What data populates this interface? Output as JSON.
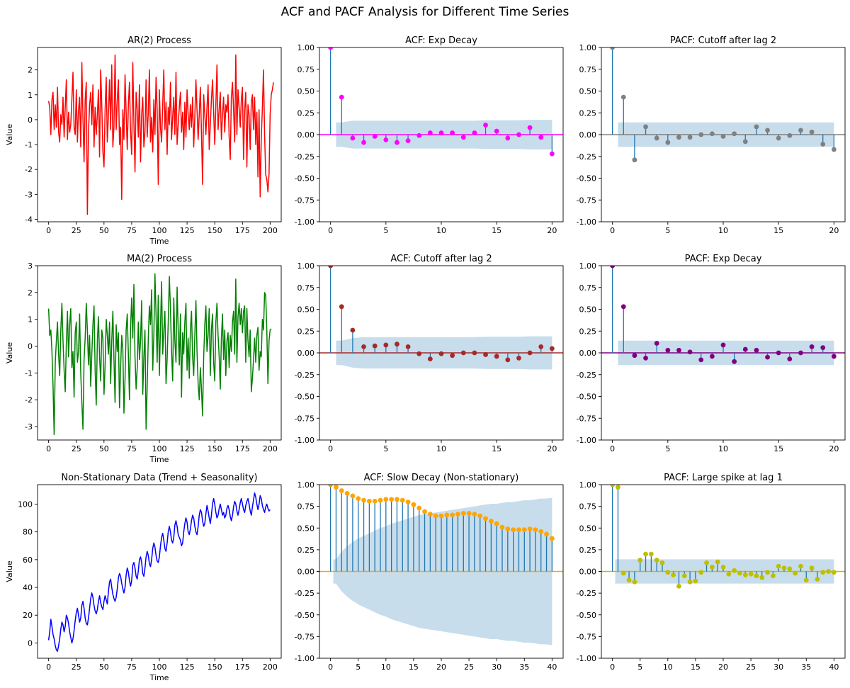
{
  "figure": {
    "title": "ACF and PACF Analysis for Different Time Series"
  },
  "chart_data": [
    {
      "type": "line",
      "title": "AR(2) Process",
      "xlabel": "Time",
      "ylabel": "Value",
      "color": "#ff0000",
      "xlim": [
        -10,
        210
      ],
      "ylim": [
        -4.1,
        2.9
      ],
      "xticks": [
        0,
        25,
        50,
        75,
        100,
        125,
        150,
        175,
        200
      ],
      "yticks": [
        -4,
        -3,
        -2,
        -1,
        0,
        1,
        2
      ],
      "x_start": 0,
      "values": [
        0.75,
        0.5,
        -0.6,
        0.8,
        1.1,
        -0.4,
        0.6,
        -0.3,
        1.3,
        -0.5,
        -0.9,
        0.2,
        -0.2,
        0.9,
        -0.7,
        0.5,
        1.6,
        -0.8,
        0.3,
        -0.5,
        -0.2,
        0.8,
        1.9,
        -0.3,
        -0.6,
        1.2,
        -0.9,
        0.4,
        0.9,
        -1.1,
        2.3,
        0.1,
        -1.7,
        0.8,
        1.5,
        -3.8,
        -0.5,
        0.6,
        1.1,
        -0.2,
        1.4,
        -1.1,
        0.5,
        -0.6,
        0.2,
        1.2,
        -1.5,
        2.0,
        0.6,
        -1.3,
        -1.9,
        0.4,
        1.7,
        -0.9,
        0.2,
        1.6,
        -0.4,
        2.2,
        -1.1,
        -0.3,
        2.6,
        -0.4,
        0.8,
        1.6,
        -1.0,
        -0.3,
        -3.2,
        0.4,
        -0.8,
        1.8,
        0.3,
        -1.2,
        0.6,
        1.5,
        -0.5,
        -1.4,
        2.3,
        -0.1,
        -2.1,
        1.1,
        0.4,
        -0.7,
        1.4,
        -1.7,
        0.2,
        0.9,
        -1.1,
        -0.5,
        1.6,
        -0.7,
        0.3,
        2.0,
        -0.9,
        0.1,
        -1.3,
        0.8,
        -0.6,
        1.7,
        0.4,
        -2.6,
        1.2,
        -0.3,
        -0.9,
        0.6,
        2.0,
        -0.4,
        0.7,
        -1.4,
        0.5,
        -0.2,
        1.5,
        -0.8,
        0.1,
        0.9,
        -0.6,
        1.9,
        -1.0,
        -0.2,
        0.5,
        1.1,
        -0.5,
        0.3,
        -1.2,
        0.7,
        -0.7,
        1.2,
        0.2,
        -0.4,
        0.6,
        -0.3,
        0.9,
        -1.1,
        0.1,
        1.6,
        0.4,
        -0.8,
        0.2,
        1.3,
        -0.5,
        -2.6,
        1.0,
        0.2,
        -0.6,
        0.5,
        1.4,
        -1.2,
        -0.2,
        0.8,
        1.6,
        0.3,
        -1.0,
        0.6,
        2.2,
        -0.4,
        0.4,
        1.1,
        -0.8,
        0.2,
        0.9,
        -0.5,
        0.6,
        0.3,
        1.0,
        -0.7,
        -1.6,
        0.9,
        1.5,
        0.4,
        -0.9,
        2.6,
        -0.6,
        1.2,
        0.5,
        -0.3,
        0.8,
        1.3,
        -1.6,
        0.4,
        1.1,
        -1.9,
        0.6,
        0.2,
        -1.2,
        0.7,
        1.0,
        -0.4,
        0.9,
        -1.0,
        0.3,
        -2.3,
        0.4,
        -3.1,
        -0.8,
        0.5,
        2.0,
        -0.6,
        -2.2,
        -2.4,
        -2.9,
        -2.2,
        0.2,
        1.0,
        1.2,
        1.5
      ]
    },
    {
      "type": "stem",
      "title": "ACF: Exp Decay",
      "color": "#ff00ff",
      "xlim": [
        -1,
        21
      ],
      "ylim": [
        -1,
        1
      ],
      "xticks": [
        0,
        5,
        10,
        15,
        20
      ],
      "yticks": [
        -1.0,
        -0.75,
        -0.5,
        -0.25,
        0.0,
        0.25,
        0.5,
        0.75,
        1.0
      ],
      "values": [
        1.0,
        0.43,
        -0.04,
        -0.09,
        -0.02,
        -0.06,
        -0.09,
        -0.07,
        -0.01,
        0.02,
        0.02,
        0.02,
        -0.03,
        0.02,
        0.11,
        0.04,
        -0.04,
        0.0,
        0.08,
        -0.03,
        -0.22
      ],
      "confidence": [
        0.14,
        0.14,
        0.16,
        0.16,
        0.16,
        0.16,
        0.16,
        0.16,
        0.16,
        0.16,
        0.16,
        0.16,
        0.16,
        0.16,
        0.165,
        0.165,
        0.165,
        0.165,
        0.17,
        0.17,
        0.17
      ]
    },
    {
      "type": "stem",
      "title": "PACF: Cutoff after lag 2",
      "color": "#808080",
      "xlim": [
        -1,
        21
      ],
      "ylim": [
        -1,
        1
      ],
      "xticks": [
        0,
        5,
        10,
        15,
        20
      ],
      "yticks": [
        -1.0,
        -0.75,
        -0.5,
        -0.25,
        0.0,
        0.25,
        0.5,
        0.75,
        1.0
      ],
      "values": [
        1.0,
        0.43,
        -0.29,
        0.09,
        -0.04,
        -0.09,
        -0.03,
        -0.03,
        0.0,
        0.01,
        -0.02,
        0.01,
        -0.08,
        0.09,
        0.05,
        -0.04,
        -0.01,
        0.05,
        0.03,
        -0.11,
        -0.17
      ],
      "confidence": [
        0.14,
        0.14,
        0.14,
        0.14,
        0.14,
        0.14,
        0.14,
        0.14,
        0.14,
        0.14,
        0.14,
        0.14,
        0.14,
        0.14,
        0.14,
        0.14,
        0.14,
        0.14,
        0.14,
        0.14,
        0.14
      ]
    },
    {
      "type": "line",
      "title": "MA(2) Process",
      "xlabel": "Time",
      "ylabel": "Value",
      "color": "#008000",
      "xlim": [
        -10,
        210
      ],
      "ylim": [
        -3.5,
        3.0
      ],
      "xticks": [
        0,
        25,
        50,
        75,
        100,
        125,
        150,
        175,
        200
      ],
      "yticks": [
        -3,
        -2,
        -1,
        0,
        1,
        2,
        3
      ],
      "x_start": 0,
      "values": [
        1.4,
        0.4,
        0.6,
        -0.2,
        -1.5,
        -3.3,
        -0.6,
        0.2,
        0.9,
        -0.3,
        -1.1,
        0.6,
        1.6,
        0.2,
        -0.9,
        -1.7,
        0.1,
        1.3,
        -0.4,
        0.8,
        1.4,
        -0.8,
        -0.2,
        -1.9,
        0.5,
        0.9,
        -0.6,
        -0.2,
        1.2,
        -1.0,
        -2.1,
        -3.1,
        -0.5,
        0.3,
        1.6,
        0.6,
        -0.7,
        0.4,
        -1.5,
        -0.3,
        0.8,
        1.5,
        -0.9,
        -2.2,
        0.2,
        1.1,
        -0.4,
        -1.3,
        0.6,
        0.3,
        -1.8,
        -0.7,
        1.0,
        0.4,
        -0.3,
        0.9,
        -1.4,
        0.2,
        1.3,
        -0.5,
        -2.1,
        0.8,
        -0.2,
        0.5,
        -2.3,
        -0.8,
        0.4,
        -0.1,
        -2.5,
        -1.2,
        0.6,
        1.2,
        -0.3,
        -2.0,
        0.7,
        1.8,
        0.3,
        2.3,
        -0.4,
        -1.6,
        -0.8,
        0.9,
        -0.5,
        0.2,
        1.7,
        -1.8,
        -0.4,
        0.6,
        -3.1,
        -1.5,
        0.3,
        1.5,
        0.8,
        2.1,
        -0.9,
        0.4,
        2.7,
        1.2,
        -0.6,
        1.9,
        -1.1,
        0.7,
        2.4,
        -0.3,
        0.6,
        1.3,
        -1.4,
        -0.5,
        0.9,
        2.6,
        1.4,
        -0.2,
        -1.3,
        1.8,
        0.2,
        -0.6,
        2.2,
        0.6,
        -0.7,
        1.2,
        -1.9,
        0.5,
        -0.3,
        0.9,
        1.6,
        -0.9,
        0.3,
        -1.2,
        0.6,
        1.3,
        -0.4,
        -1.1,
        0.4,
        1.7,
        -0.2,
        -1.4,
        -2.0,
        -0.8,
        -1.6,
        -2.6,
        -0.4,
        0.8,
        1.5,
        -0.2,
        0.4,
        1.4,
        -1.1,
        0.6,
        1.2,
        -0.6,
        -1.3,
        0.9,
        1.6,
        0.4,
        -0.4,
        -1.6,
        0.3,
        1.2,
        -0.5,
        0.6,
        -1.1,
        0.2,
        0.5,
        -0.8,
        0.4,
        -0.2,
        0.9,
        1.3,
        -0.3,
        2.5,
        -0.6,
        1.1,
        1.6,
        0.8,
        1.4,
        0.5,
        1.3,
        1.5,
        -0.6,
        1.4,
        0.2,
        -0.4,
        0.6,
        -1.7,
        -1.2,
        -0.5,
        0.3,
        -0.6,
        0.4,
        0.7,
        -0.9,
        -0.2,
        -0.4,
        1.0,
        0.6,
        2.0,
        1.9,
        0.6,
        -1.4,
        0.2,
        0.6,
        0.65
      ]
    },
    {
      "type": "stem",
      "title": "ACF: Cutoff after lag 2",
      "color": "#a52a2a",
      "xlim": [
        -1,
        21
      ],
      "ylim": [
        -1,
        1
      ],
      "xticks": [
        0,
        5,
        10,
        15,
        20
      ],
      "yticks": [
        -1.0,
        -0.75,
        -0.5,
        -0.25,
        0.0,
        0.25,
        0.5,
        0.75,
        1.0
      ],
      "values": [
        1.0,
        0.53,
        0.26,
        0.07,
        0.08,
        0.09,
        0.1,
        0.07,
        -0.01,
        -0.07,
        -0.01,
        -0.03,
        -0.0,
        0.0,
        -0.02,
        -0.04,
        -0.08,
        -0.06,
        -0.0,
        0.07,
        0.05
      ],
      "confidence": [
        0.14,
        0.14,
        0.17,
        0.18,
        0.18,
        0.18,
        0.18,
        0.18,
        0.18,
        0.18,
        0.18,
        0.18,
        0.18,
        0.18,
        0.185,
        0.185,
        0.185,
        0.185,
        0.19,
        0.19,
        0.19
      ]
    },
    {
      "type": "stem",
      "title": "PACF: Exp Decay",
      "color": "#800080",
      "xlim": [
        -1,
        21
      ],
      "ylim": [
        -1,
        1
      ],
      "xticks": [
        0,
        5,
        10,
        15,
        20
      ],
      "yticks": [
        -1.0,
        -0.75,
        -0.5,
        -0.25,
        0.0,
        0.25,
        0.5,
        0.75,
        1.0
      ],
      "values": [
        1.0,
        0.53,
        -0.03,
        -0.06,
        0.11,
        0.03,
        0.03,
        0.01,
        -0.08,
        -0.04,
        0.09,
        -0.1,
        0.04,
        0.03,
        -0.05,
        0.0,
        -0.07,
        0.0,
        0.07,
        0.06,
        -0.04
      ],
      "confidence": [
        0.14,
        0.14,
        0.14,
        0.14,
        0.14,
        0.14,
        0.14,
        0.14,
        0.14,
        0.14,
        0.14,
        0.14,
        0.14,
        0.14,
        0.14,
        0.14,
        0.14,
        0.14,
        0.14,
        0.14,
        0.14
      ]
    },
    {
      "type": "line",
      "title": "Non-Stationary Data (Trend + Seasonality)",
      "xlabel": "Time",
      "ylabel": "Value",
      "color": "#0000ff",
      "xlim": [
        -10,
        210
      ],
      "ylim": [
        -11,
        114
      ],
      "xticks": [
        0,
        25,
        50,
        75,
        100,
        125,
        150,
        175,
        200
      ],
      "yticks": [
        0,
        20,
        40,
        60,
        80,
        100
      ],
      "x_start": 0,
      "values": [
        2,
        8,
        17,
        12,
        6,
        3,
        -2,
        -5,
        -6,
        -2,
        3,
        10,
        15,
        13,
        8,
        12,
        20,
        18,
        14,
        8,
        4,
        0,
        3,
        9,
        16,
        22,
        25,
        20,
        15,
        18,
        27,
        30,
        25,
        18,
        14,
        13,
        18,
        25,
        32,
        36,
        33,
        27,
        23,
        21,
        24,
        30,
        34,
        29,
        26,
        24,
        30,
        34,
        31,
        28,
        37,
        44,
        46,
        40,
        35,
        32,
        30,
        33,
        39,
        47,
        50,
        48,
        43,
        39,
        36,
        40,
        49,
        54,
        51,
        45,
        41,
        45,
        56,
        58,
        54,
        48,
        46,
        52,
        60,
        62,
        58,
        50,
        48,
        54,
        62,
        66,
        63,
        57,
        55,
        60,
        68,
        72,
        69,
        63,
        59,
        58,
        62,
        70,
        76,
        79,
        74,
        68,
        66,
        72,
        80,
        84,
        80,
        74,
        72,
        76,
        85,
        88,
        84,
        78,
        76,
        74,
        70,
        72,
        80,
        86,
        90,
        87,
        80,
        78,
        82,
        88,
        92,
        90,
        84,
        80,
        78,
        84,
        92,
        96,
        94,
        88,
        84,
        86,
        93,
        99,
        95,
        90,
        86,
        92,
        100,
        104,
        100,
        94,
        90,
        92,
        97,
        100,
        96,
        92,
        94,
        90,
        92,
        97,
        99,
        96,
        91,
        88,
        92,
        98,
        102,
        100,
        95,
        92,
        96,
        101,
        104,
        100,
        96,
        94,
        99,
        102,
        104,
        100,
        95,
        92,
        98,
        103,
        108,
        105,
        100,
        96,
        100,
        106,
        104,
        99,
        96,
        94,
        98,
        100,
        97,
        95,
        96
      ]
    },
    {
      "type": "stem",
      "title": "ACF: Slow Decay (Non-stationary)",
      "color": "#ffa500",
      "xlim": [
        -2,
        42
      ],
      "ylim": [
        -1,
        1
      ],
      "xticks": [
        0,
        5,
        10,
        15,
        20,
        25,
        30,
        35,
        40
      ],
      "yticks": [
        -1.0,
        -0.75,
        -0.5,
        -0.25,
        0.0,
        0.25,
        0.5,
        0.75,
        1.0
      ],
      "values": [
        1.0,
        0.97,
        0.93,
        0.9,
        0.87,
        0.84,
        0.82,
        0.81,
        0.81,
        0.82,
        0.83,
        0.83,
        0.83,
        0.82,
        0.8,
        0.77,
        0.73,
        0.69,
        0.66,
        0.64,
        0.64,
        0.65,
        0.65,
        0.66,
        0.67,
        0.67,
        0.66,
        0.64,
        0.61,
        0.58,
        0.55,
        0.51,
        0.49,
        0.48,
        0.48,
        0.48,
        0.49,
        0.48,
        0.46,
        0.43,
        0.38
      ],
      "confidence": [
        0.14,
        0.14,
        0.23,
        0.29,
        0.34,
        0.38,
        0.41,
        0.44,
        0.47,
        0.5,
        0.52,
        0.55,
        0.57,
        0.59,
        0.61,
        0.63,
        0.65,
        0.66,
        0.67,
        0.68,
        0.69,
        0.7,
        0.71,
        0.72,
        0.73,
        0.74,
        0.75,
        0.76,
        0.77,
        0.78,
        0.78,
        0.79,
        0.8,
        0.8,
        0.81,
        0.82,
        0.82,
        0.83,
        0.84,
        0.84,
        0.85
      ]
    },
    {
      "type": "stem",
      "title": "PACF: Large spike at lag 1",
      "color": "#bfbf00",
      "xlim": [
        -2,
        42
      ],
      "ylim": [
        -1,
        1
      ],
      "xticks": [
        0,
        5,
        10,
        15,
        20,
        25,
        30,
        35,
        40
      ],
      "yticks": [
        -1.0,
        -0.75,
        -0.5,
        -0.25,
        0.0,
        0.25,
        0.5,
        0.75,
        1.0
      ],
      "values": [
        1.0,
        0.97,
        -0.02,
        -0.1,
        -0.12,
        0.13,
        0.2,
        0.2,
        0.13,
        0.1,
        -0.01,
        -0.04,
        -0.17,
        -0.05,
        -0.12,
        -0.11,
        -0.01,
        0.1,
        0.05,
        0.11,
        0.05,
        -0.03,
        0.01,
        -0.02,
        -0.04,
        -0.03,
        -0.05,
        -0.07,
        -0.01,
        -0.05,
        0.06,
        0.04,
        0.03,
        -0.02,
        0.06,
        -0.1,
        0.04,
        -0.09,
        -0.01,
        0.0,
        -0.01
      ],
      "confidence": [
        0.14,
        0.14,
        0.14,
        0.14,
        0.14,
        0.14,
        0.14,
        0.14,
        0.14,
        0.14,
        0.14,
        0.14,
        0.14,
        0.14,
        0.14,
        0.14,
        0.14,
        0.14,
        0.14,
        0.14,
        0.14,
        0.14,
        0.14,
        0.14,
        0.14,
        0.14,
        0.14,
        0.14,
        0.14,
        0.14,
        0.14,
        0.14,
        0.14,
        0.14,
        0.14,
        0.14,
        0.14,
        0.14,
        0.14,
        0.14,
        0.14
      ]
    }
  ]
}
